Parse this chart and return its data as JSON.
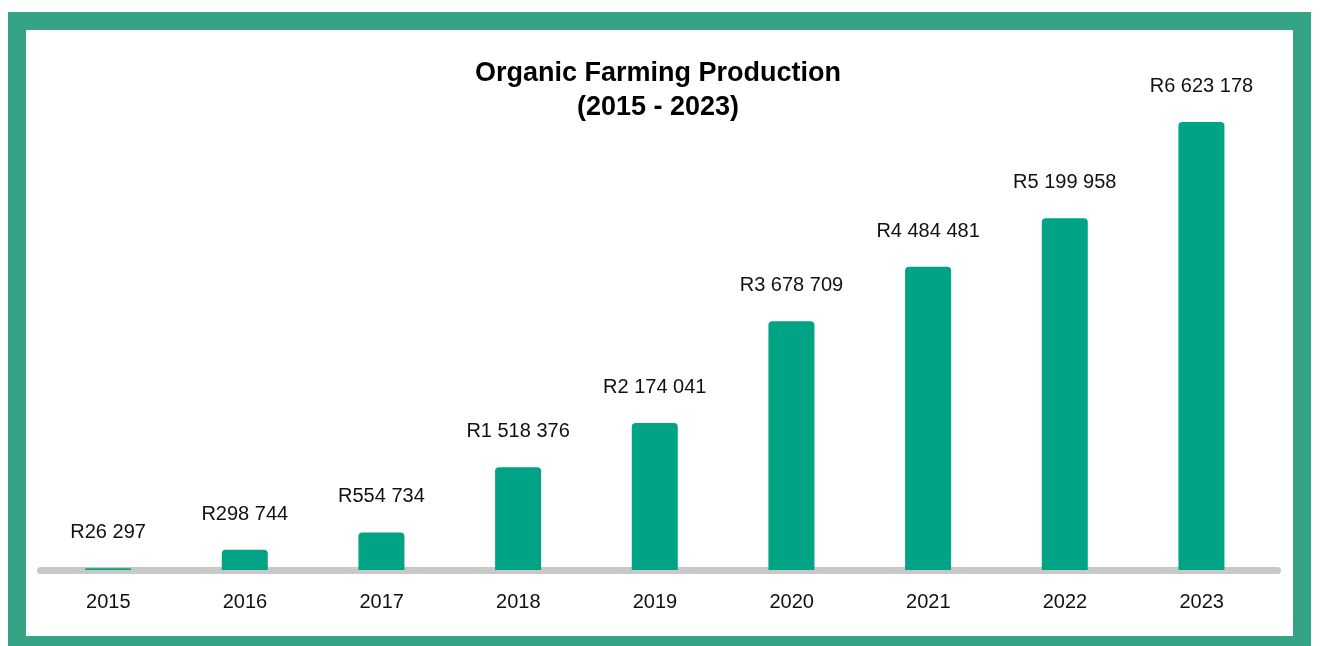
{
  "chart_data": {
    "type": "bar",
    "title": "Organic Farming Production\n(2015 - 2023)",
    "categories": [
      "2015",
      "2016",
      "2017",
      "2018",
      "2019",
      "2020",
      "2021",
      "2022",
      "2023"
    ],
    "values": [
      26297,
      298744,
      554734,
      1518376,
      2174041,
      3678709,
      4484481,
      5199958,
      6623178
    ],
    "value_labels": [
      "R26 297",
      "R298 744",
      "R554 734",
      "R1 518 376",
      "R2 174 041",
      "R3 678 709",
      "R4 484 481",
      "R5 199 958",
      "R6 623 178"
    ],
    "color": "#00a383",
    "grid": false,
    "legend": false
  }
}
